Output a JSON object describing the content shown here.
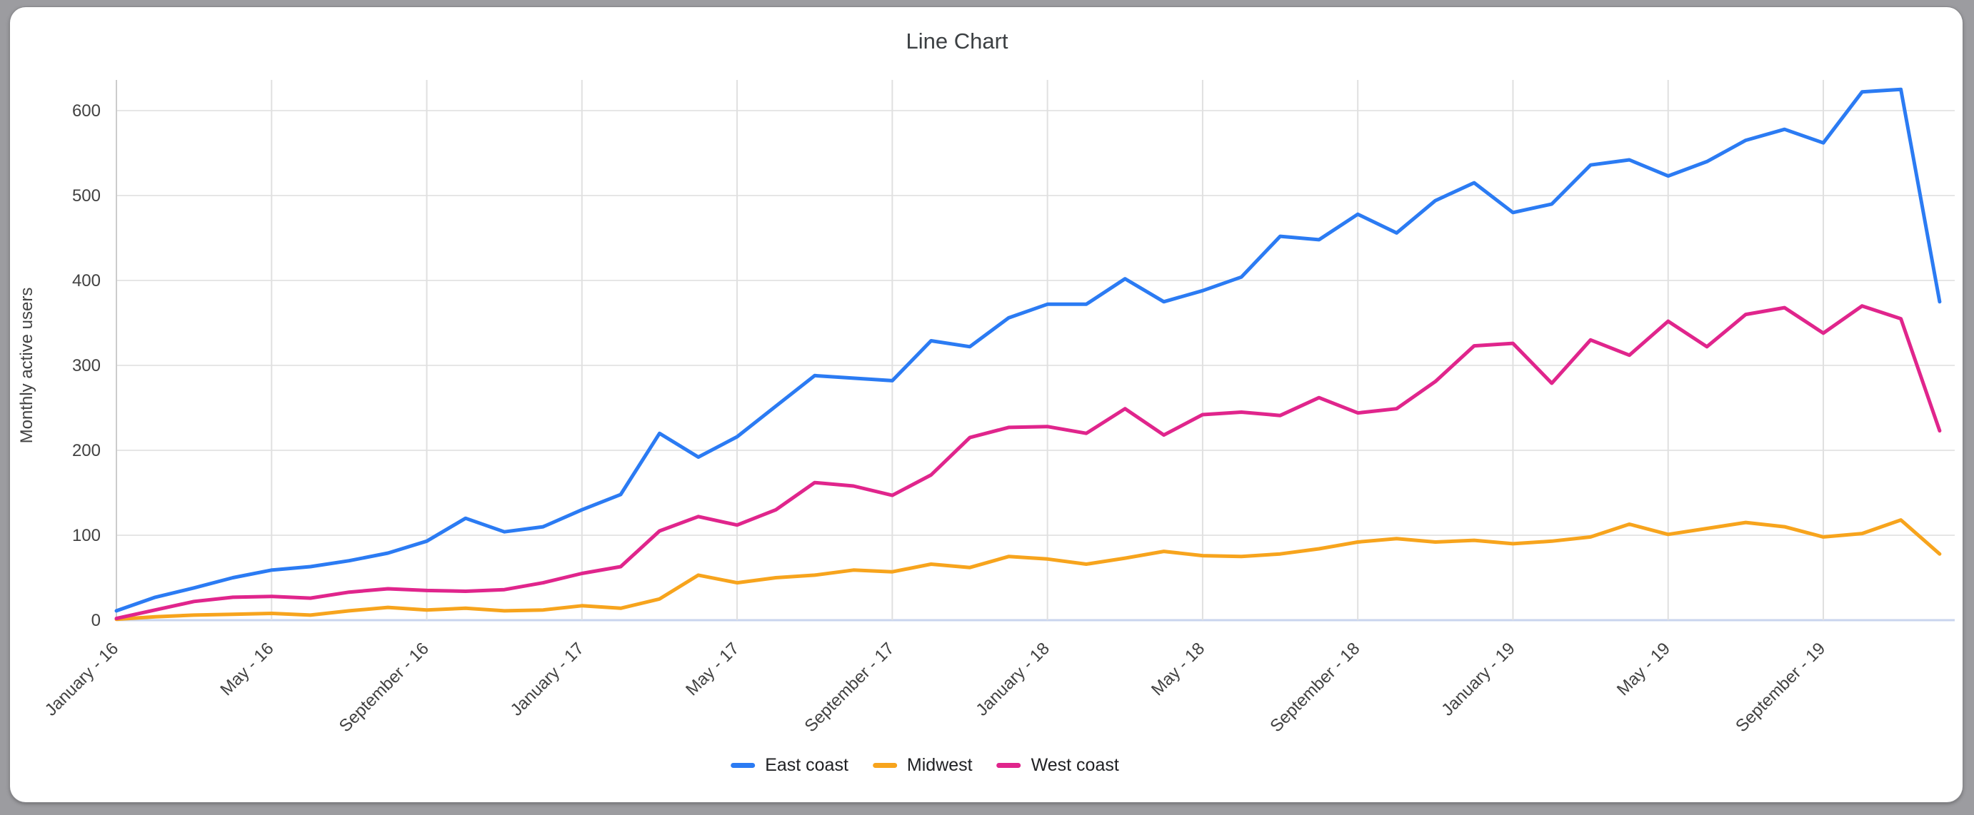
{
  "window": {
    "background_color": "#9c9ca0",
    "card_color": "#ffffff"
  },
  "chart_data": {
    "type": "line",
    "title": "Line Chart",
    "xlabel": "",
    "ylabel": "Monthly active users",
    "ylim": [
      0,
      640
    ],
    "y_ticks": [
      0,
      100,
      200,
      300,
      400,
      500,
      600
    ],
    "grid": true,
    "legend_position": "bottom",
    "x_ticks_every": 4,
    "x_tick_labels": [
      "January - 16",
      "May - 16",
      "September - 16",
      "January - 17",
      "May - 17",
      "September - 17",
      "January - 18",
      "May - 18",
      "September - 18",
      "January - 19",
      "May - 19",
      "September - 19"
    ],
    "x_categories": [
      "January - 16",
      "February - 16",
      "March - 16",
      "April - 16",
      "May - 16",
      "June - 16",
      "July - 16",
      "August - 16",
      "September - 16",
      "October - 16",
      "November - 16",
      "December - 16",
      "January - 17",
      "February - 17",
      "March - 17",
      "April - 17",
      "May - 17",
      "June - 17",
      "July - 17",
      "August - 17",
      "September - 17",
      "October - 17",
      "November - 17",
      "December - 17",
      "January - 18",
      "February - 18",
      "March - 18",
      "April - 18",
      "May - 18",
      "June - 18",
      "July - 18",
      "August - 18",
      "September - 18",
      "October - 18",
      "November - 18",
      "December - 18",
      "January - 19",
      "February - 19",
      "March - 19",
      "April - 19",
      "May - 19",
      "June - 19",
      "July - 19",
      "August - 19",
      "September - 19",
      "October - 19",
      "November - 19",
      "December - 19"
    ],
    "series": [
      {
        "name": "East coast",
        "color": "#2b7bf3",
        "values": [
          11,
          27,
          38,
          50,
          59,
          63,
          70,
          79,
          93,
          120,
          104,
          110,
          130,
          148,
          220,
          192,
          216,
          252,
          288,
          285,
          282,
          329,
          322,
          356,
          372,
          372,
          402,
          375,
          388,
          404,
          452,
          448,
          478,
          456,
          494,
          515,
          480,
          490,
          536,
          542,
          523,
          540,
          565,
          578,
          562,
          622,
          625,
          375
        ]
      },
      {
        "name": "Midwest",
        "color": "#f7a41d",
        "values": [
          1,
          4,
          6,
          7,
          8,
          6,
          11,
          15,
          12,
          14,
          11,
          12,
          17,
          14,
          25,
          53,
          44,
          50,
          53,
          59,
          57,
          66,
          62,
          75,
          72,
          66,
          73,
          81,
          76,
          75,
          78,
          84,
          92,
          96,
          92,
          94,
          90,
          93,
          98,
          113,
          101,
          108,
          115,
          110,
          98,
          102,
          118,
          78
        ]
      },
      {
        "name": "West coast",
        "color": "#e0258c",
        "values": [
          2,
          12,
          22,
          27,
          28,
          26,
          33,
          37,
          35,
          34,
          36,
          44,
          55,
          63,
          105,
          122,
          112,
          130,
          162,
          158,
          147,
          171,
          215,
          227,
          228,
          220,
          249,
          218,
          242,
          245,
          241,
          262,
          244,
          249,
          281,
          323,
          326,
          279,
          330,
          312,
          352,
          322,
          360,
          368,
          338,
          370,
          355,
          223
        ]
      }
    ],
    "style_colors": {
      "h_gridline": "#e6e6e6",
      "v_gridline": "#e0e0e0",
      "y_axis_line": "#cccccc",
      "x_baseline": "#c9d5ee",
      "tick_text": "#424242",
      "title_text": "#3c4043",
      "legend_text": "#202124"
    }
  }
}
